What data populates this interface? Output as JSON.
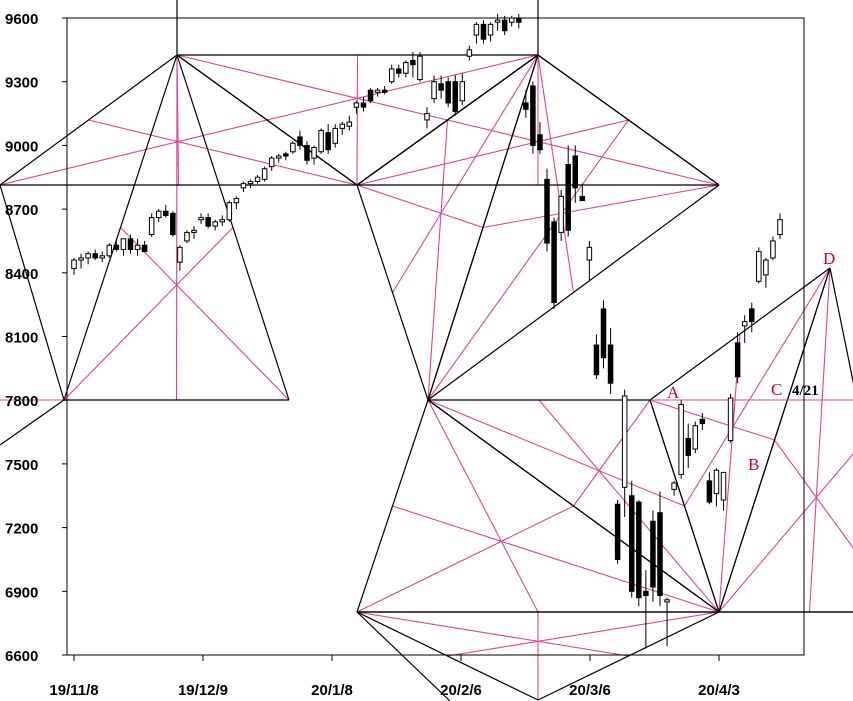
{
  "chart_data": {
    "type": "candlestick",
    "title": "",
    "xlabel": "",
    "ylabel": "",
    "ylim": [
      6600,
      9600
    ],
    "yticks": [
      9600,
      9300,
      9000,
      8700,
      8400,
      8100,
      7800,
      7500,
      7200,
      6900,
      6600
    ],
    "xticks": [
      "19/11/8",
      "19/12/9",
      "20/1/8",
      "20/2/6",
      "20/3/6",
      "20/4/3"
    ],
    "grid": false,
    "colors": {
      "candle_up": "#ffffff",
      "candle_down": "#000000",
      "wick": "#000000",
      "geometry_black": "#000000",
      "geometry_pink": "#e0449a",
      "geometry_dash": "#9fd4b0",
      "annotation": "#d0021b"
    },
    "candles": [
      {
        "o": 8420,
        "h": 8470,
        "l": 8390,
        "c": 8460
      },
      {
        "o": 8460,
        "h": 8490,
        "l": 8420,
        "c": 8470
      },
      {
        "o": 8470,
        "h": 8500,
        "l": 8440,
        "c": 8490
      },
      {
        "o": 8490,
        "h": 8510,
        "l": 8460,
        "c": 8470
      },
      {
        "o": 8470,
        "h": 8500,
        "l": 8450,
        "c": 8480
      },
      {
        "o": 8480,
        "h": 8540,
        "l": 8470,
        "c": 8530
      },
      {
        "o": 8530,
        "h": 8560,
        "l": 8500,
        "c": 8510
      },
      {
        "o": 8510,
        "h": 8560,
        "l": 8480,
        "c": 8560
      },
      {
        "o": 8560,
        "h": 8580,
        "l": 8490,
        "c": 8510
      },
      {
        "o": 8510,
        "h": 8560,
        "l": 8480,
        "c": 8530
      },
      {
        "o": 8530,
        "h": 8550,
        "l": 8500,
        "c": 8500
      },
      {
        "o": 8580,
        "h": 8680,
        "l": 8570,
        "c": 8660
      },
      {
        "o": 8660,
        "h": 8700,
        "l": 8640,
        "c": 8690
      },
      {
        "o": 8690,
        "h": 8720,
        "l": 8660,
        "c": 8670
      },
      {
        "o": 8680,
        "h": 8690,
        "l": 8570,
        "c": 8580
      },
      {
        "o": 8450,
        "h": 8530,
        "l": 8410,
        "c": 8520
      },
      {
        "o": 8550,
        "h": 8600,
        "l": 8540,
        "c": 8590
      },
      {
        "o": 8590,
        "h": 8620,
        "l": 8560,
        "c": 8600
      },
      {
        "o": 8650,
        "h": 8680,
        "l": 8630,
        "c": 8660
      },
      {
        "o": 8660,
        "h": 8680,
        "l": 8610,
        "c": 8620
      },
      {
        "o": 8620,
        "h": 8650,
        "l": 8600,
        "c": 8640
      },
      {
        "o": 8640,
        "h": 8670,
        "l": 8620,
        "c": 8650
      },
      {
        "o": 8650,
        "h": 8740,
        "l": 8640,
        "c": 8730
      },
      {
        "o": 8730,
        "h": 8760,
        "l": 8700,
        "c": 8750
      },
      {
        "o": 8800,
        "h": 8830,
        "l": 8780,
        "c": 8820
      },
      {
        "o": 8820,
        "h": 8840,
        "l": 8800,
        "c": 8830
      },
      {
        "o": 8830,
        "h": 8860,
        "l": 8820,
        "c": 8850
      },
      {
        "o": 8840,
        "h": 8900,
        "l": 8830,
        "c": 8890
      },
      {
        "o": 8900,
        "h": 8950,
        "l": 8880,
        "c": 8940
      },
      {
        "o": 8940,
        "h": 8960,
        "l": 8920,
        "c": 8950
      },
      {
        "o": 8960,
        "h": 8970,
        "l": 8930,
        "c": 8950
      },
      {
        "o": 8970,
        "h": 9020,
        "l": 8960,
        "c": 9010
      },
      {
        "o": 9040,
        "h": 9070,
        "l": 8980,
        "c": 9000
      },
      {
        "o": 9000,
        "h": 9020,
        "l": 8910,
        "c": 8930
      },
      {
        "o": 8940,
        "h": 9000,
        "l": 8910,
        "c": 8990
      },
      {
        "o": 8970,
        "h": 9080,
        "l": 8960,
        "c": 9070
      },
      {
        "o": 9060,
        "h": 9100,
        "l": 8960,
        "c": 8980
      },
      {
        "o": 9010,
        "h": 9100,
        "l": 8990,
        "c": 9080
      },
      {
        "o": 9080,
        "h": 9110,
        "l": 9050,
        "c": 9100
      },
      {
        "o": 9090,
        "h": 9140,
        "l": 9070,
        "c": 9110
      },
      {
        "o": 9180,
        "h": 9210,
        "l": 9150,
        "c": 9200
      },
      {
        "o": 9200,
        "h": 9230,
        "l": 9160,
        "c": 9180
      },
      {
        "o": 9260,
        "h": 9270,
        "l": 9200,
        "c": 9210
      },
      {
        "o": 9250,
        "h": 9270,
        "l": 9230,
        "c": 9260
      },
      {
        "o": 9260,
        "h": 9280,
        "l": 9240,
        "c": 9250
      },
      {
        "o": 9300,
        "h": 9380,
        "l": 9290,
        "c": 9360
      },
      {
        "o": 9360,
        "h": 9380,
        "l": 9320,
        "c": 9340
      },
      {
        "o": 9340,
        "h": 9400,
        "l": 9320,
        "c": 9390
      },
      {
        "o": 9400,
        "h": 9440,
        "l": 9320,
        "c": 9380
      },
      {
        "o": 9310,
        "h": 9440,
        "l": 9300,
        "c": 9420
      },
      {
        "o": 9120,
        "h": 9180,
        "l": 9080,
        "c": 9150
      },
      {
        "o": 9220,
        "h": 9330,
        "l": 9200,
        "c": 9300
      },
      {
        "o": 9290,
        "h": 9330,
        "l": 9220,
        "c": 9260
      },
      {
        "o": 9300,
        "h": 9320,
        "l": 9180,
        "c": 9200
      },
      {
        "o": 9300,
        "h": 9330,
        "l": 9140,
        "c": 9160
      },
      {
        "o": 9210,
        "h": 9340,
        "l": 9190,
        "c": 9300
      },
      {
        "o": 9420,
        "h": 9470,
        "l": 9400,
        "c": 9450
      },
      {
        "o": 9520,
        "h": 9580,
        "l": 9480,
        "c": 9570
      },
      {
        "o": 9570,
        "h": 9590,
        "l": 9480,
        "c": 9500
      },
      {
        "o": 9520,
        "h": 9580,
        "l": 9490,
        "c": 9570
      },
      {
        "o": 9580,
        "h": 9620,
        "l": 9540,
        "c": 9590
      },
      {
        "o": 9590,
        "h": 9610,
        "l": 9520,
        "c": 9540
      },
      {
        "o": 9580,
        "h": 9610,
        "l": 9560,
        "c": 9600
      },
      {
        "o": 9600,
        "h": 9620,
        "l": 9550,
        "c": 9580
      },
      {
        "o": 9200,
        "h": 9260,
        "l": 9130,
        "c": 9170
      },
      {
        "o": 9280,
        "h": 9300,
        "l": 8960,
        "c": 9000
      },
      {
        "o": 9050,
        "h": 9110,
        "l": 8960,
        "c": 8980
      },
      {
        "o": 8840,
        "h": 8890,
        "l": 8500,
        "c": 8540
      },
      {
        "o": 8640,
        "h": 8660,
        "l": 8230,
        "c": 8260
      },
      {
        "o": 8590,
        "h": 8790,
        "l": 8550,
        "c": 8760
      },
      {
        "o": 8910,
        "h": 9000,
        "l": 8570,
        "c": 8600
      },
      {
        "o": 8950,
        "h": 9000,
        "l": 8730,
        "c": 8800
      },
      {
        "o": 8760,
        "h": 8820,
        "l": 8740,
        "c": 8740
      },
      {
        "o": 8460,
        "h": 8550,
        "l": 8360,
        "c": 8520
      },
      {
        "o": 8060,
        "h": 8110,
        "l": 7900,
        "c": 7920
      },
      {
        "o": 8230,
        "h": 8270,
        "l": 7950,
        "c": 8000
      },
      {
        "o": 8060,
        "h": 8140,
        "l": 7830,
        "c": 7880
      },
      {
        "o": 7310,
        "h": 7330,
        "l": 7030,
        "c": 7050
      },
      {
        "o": 7390,
        "h": 7850,
        "l": 7250,
        "c": 7820
      },
      {
        "o": 7350,
        "h": 7420,
        "l": 6870,
        "c": 6900
      },
      {
        "o": 7320,
        "h": 7330,
        "l": 6830,
        "c": 6870
      },
      {
        "o": 6900,
        "h": 7000,
        "l": 6630,
        "c": 6880
      },
      {
        "o": 7230,
        "h": 7280,
        "l": 6850,
        "c": 6920
      },
      {
        "o": 7270,
        "h": 7370,
        "l": 6830,
        "c": 6880
      },
      {
        "o": 6850,
        "h": 6870,
        "l": 6640,
        "c": 6860
      },
      {
        "o": 7380,
        "h": 7420,
        "l": 7350,
        "c": 7410
      },
      {
        "o": 7450,
        "h": 7800,
        "l": 7430,
        "c": 7780
      },
      {
        "o": 7620,
        "h": 7690,
        "l": 7480,
        "c": 7540
      },
      {
        "o": 7570,
        "h": 7700,
        "l": 7550,
        "c": 7680
      },
      {
        "o": 7710,
        "h": 7740,
        "l": 7660,
        "c": 7690
      },
      {
        "o": 7420,
        "h": 7460,
        "l": 7310,
        "c": 7320
      },
      {
        "o": 7360,
        "h": 7480,
        "l": 7300,
        "c": 7470
      },
      {
        "o": 7330,
        "h": 7450,
        "l": 7280,
        "c": 7460
      },
      {
        "o": 7610,
        "h": 7830,
        "l": 7600,
        "c": 7810
      },
      {
        "o": 8070,
        "h": 8120,
        "l": 7880,
        "c": 7910
      },
      {
        "o": 8150,
        "h": 8200,
        "l": 8070,
        "c": 8170
      },
      {
        "o": 8230,
        "h": 8260,
        "l": 8120,
        "c": 8170
      },
      {
        "o": 8360,
        "h": 8520,
        "l": 8350,
        "c": 8500
      },
      {
        "o": 8390,
        "h": 8470,
        "l": 8330,
        "c": 8460
      },
      {
        "o": 8470,
        "h": 8570,
        "l": 8460,
        "c": 8550
      },
      {
        "o": 8580,
        "h": 8680,
        "l": 8560,
        "c": 8650
      }
    ],
    "annotations": {
      "A": "A",
      "B": "B",
      "C": "C",
      "D": "D",
      "date_label": "4/21"
    }
  }
}
